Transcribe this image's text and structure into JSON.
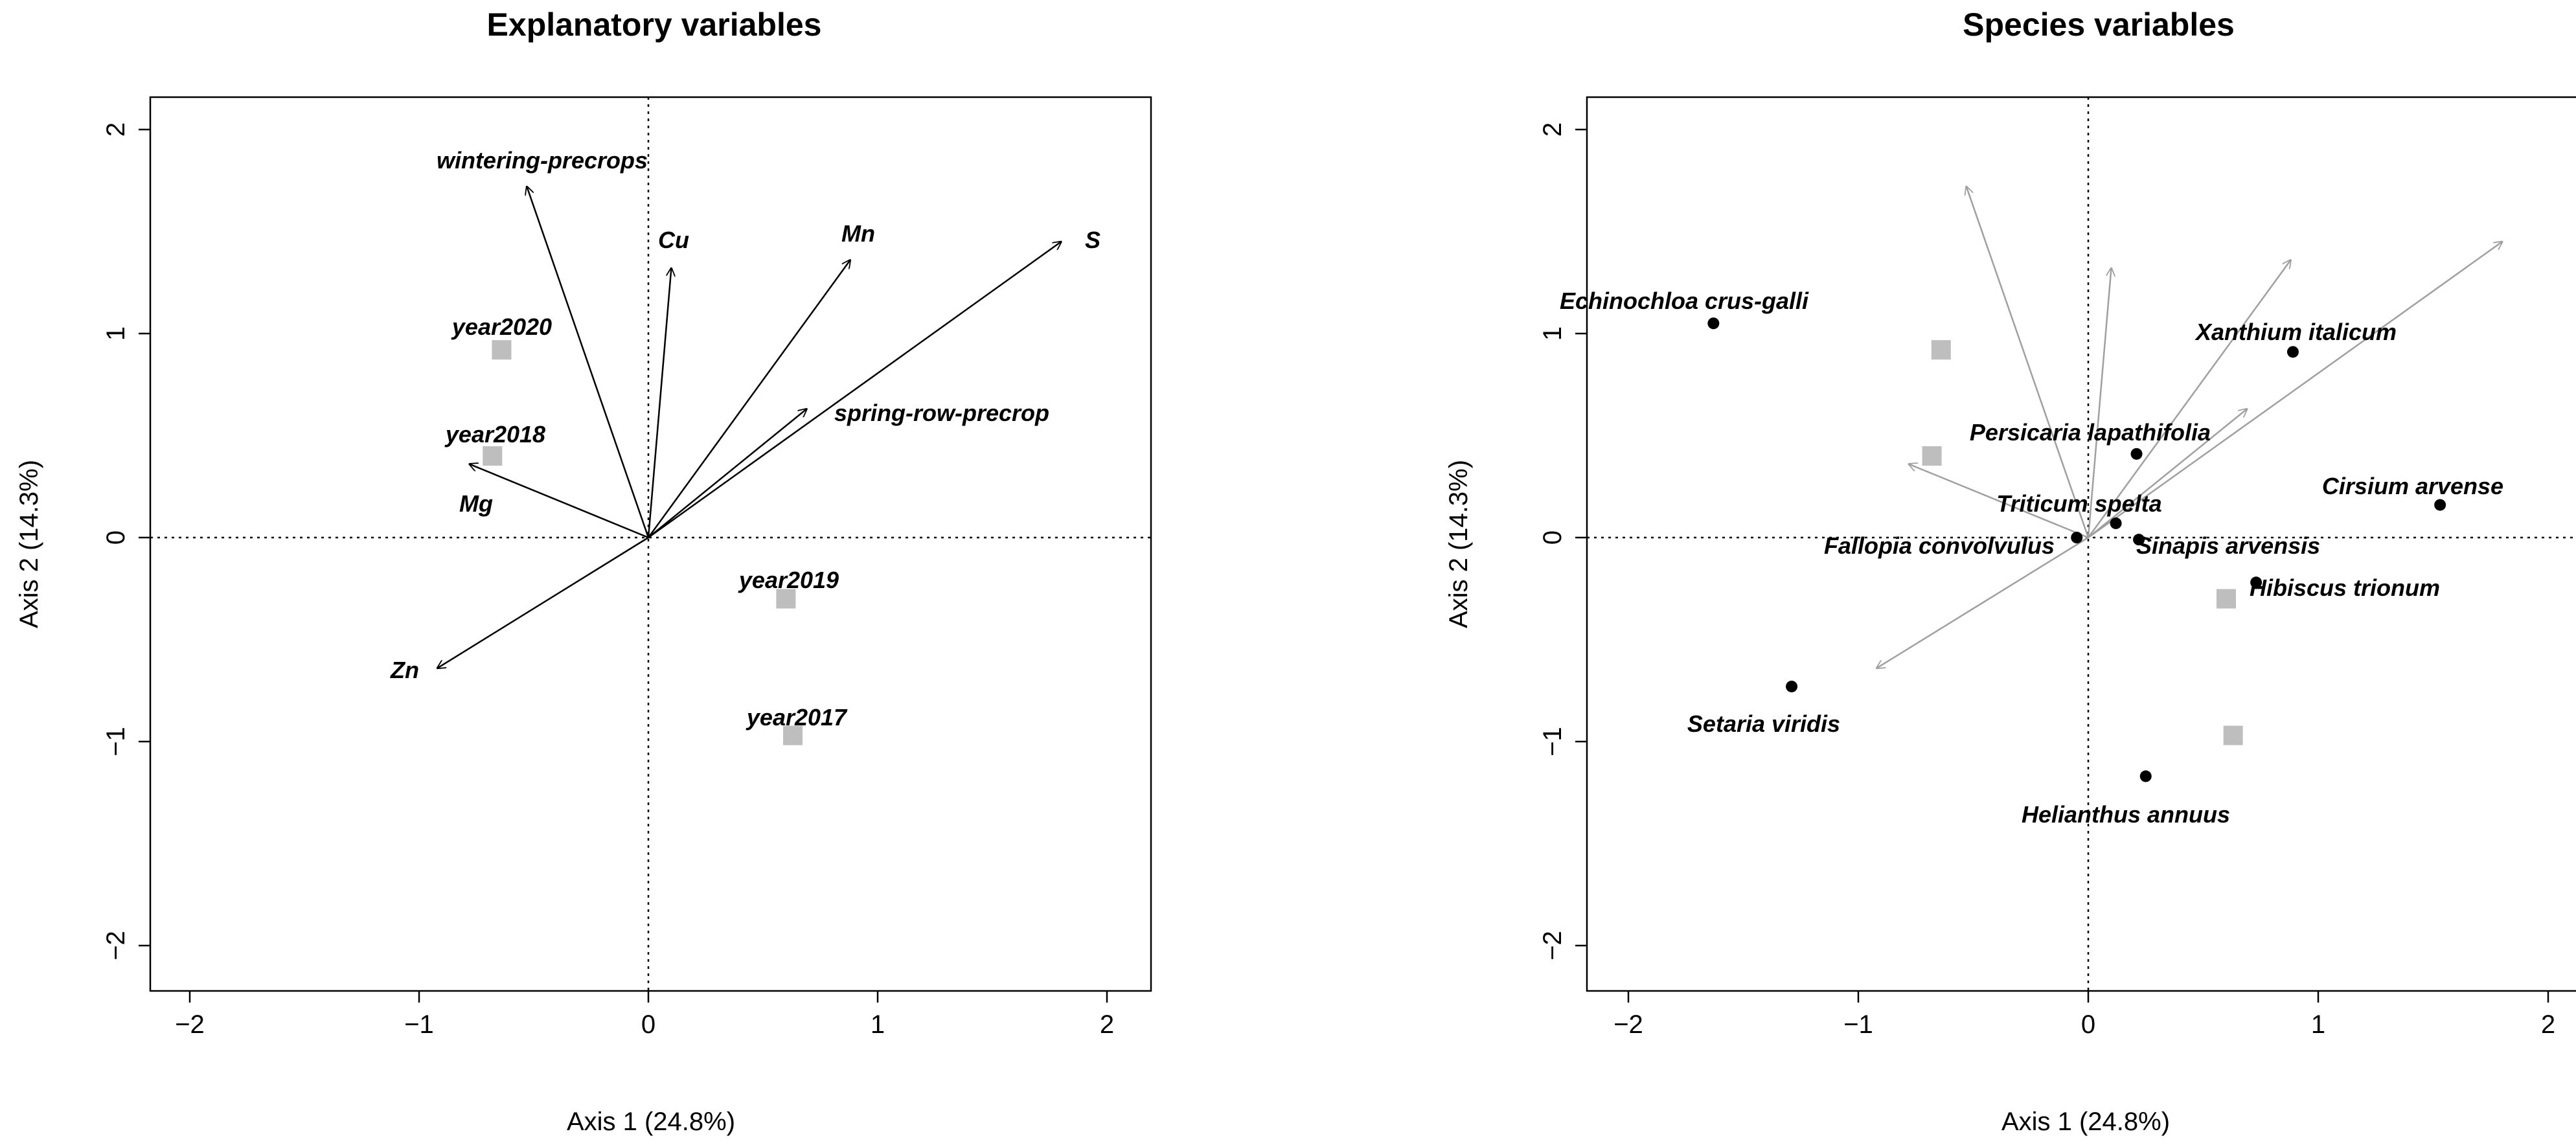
{
  "chart_data": [
    {
      "type": "scatter",
      "title": "Explanatory variables",
      "xlabel": "Axis 1 (24.8%)",
      "ylabel": "Axis 2 (14.3%)",
      "xlim": [
        -2.2,
        2.2
      ],
      "ylim": [
        -2.15,
        2.15
      ],
      "xticks": [
        "-2",
        "-1",
        "0",
        "1",
        "2"
      ],
      "yticks": [
        "-2",
        "-1",
        "0",
        "1",
        "2"
      ],
      "zero_lines": true,
      "grid": false,
      "arrow_color": "#000000",
      "marker_color": "#BEBEBE",
      "arrows": [
        {
          "label": "wintering-precrops",
          "x": -0.53,
          "y": 1.72
        },
        {
          "label": "Cu",
          "x": 0.1,
          "y": 1.32
        },
        {
          "label": "Mn",
          "x": 0.88,
          "y": 1.36
        },
        {
          "label": "S",
          "x": 1.8,
          "y": 1.45
        },
        {
          "label": "spring-row-precrop",
          "x": 0.69,
          "y": 0.63
        },
        {
          "label": "Mg",
          "x": -0.78,
          "y": 0.36
        },
        {
          "label": "Zn",
          "x": -0.92,
          "y": -0.64
        }
      ],
      "squares": [
        {
          "label": "year2020",
          "x": -0.64,
          "y": 0.92
        },
        {
          "label": "year2018",
          "x": -0.68,
          "y": 0.4
        },
        {
          "label": "year2019",
          "x": 0.6,
          "y": -0.3
        },
        {
          "label": "year2017",
          "x": 0.63,
          "y": -0.97
        }
      ]
    },
    {
      "type": "scatter",
      "title": "Species variables",
      "xlabel": "Axis 1 (24.8%)",
      "ylabel": "Axis 2 (14.3%)",
      "xlim": [
        -2.2,
        2.2
      ],
      "ylim": [
        -2.15,
        2.15
      ],
      "xticks": [
        "-2",
        "-1",
        "0",
        "1",
        "2"
      ],
      "yticks": [
        "-2",
        "-1",
        "0",
        "1",
        "2"
      ],
      "zero_lines": true,
      "grid": false,
      "arrow_color": "#A0A0A0",
      "marker_color": "#BEBEBE",
      "point_color": "#000000",
      "arrows": [
        {
          "x": -0.53,
          "y": 1.72
        },
        {
          "x": 0.1,
          "y": 1.32
        },
        {
          "x": 0.88,
          "y": 1.36
        },
        {
          "x": 1.8,
          "y": 1.45
        },
        {
          "x": 0.69,
          "y": 0.63
        },
        {
          "x": -0.78,
          "y": 0.36
        },
        {
          "x": -0.92,
          "y": -0.64
        }
      ],
      "squares": [
        {
          "x": -0.64,
          "y": 0.92
        },
        {
          "x": -0.68,
          "y": 0.4
        },
        {
          "x": 0.6,
          "y": -0.3
        },
        {
          "x": 0.63,
          "y": -0.97
        }
      ],
      "points": [
        {
          "label": "Echinochloa crus-galli",
          "x": -1.63,
          "y": 1.05
        },
        {
          "label": "Xanthium italicum",
          "x": 0.89,
          "y": 0.91
        },
        {
          "label": "Persicaria lapathifolia",
          "x": 0.21,
          "y": 0.41
        },
        {
          "label": "Cirsium arvense",
          "x": 1.53,
          "y": 0.16
        },
        {
          "label": "Triticum spelta",
          "x": 0.12,
          "y": 0.07
        },
        {
          "label": "Fallopia convolvulus",
          "x": -0.05,
          "y": 0.0
        },
        {
          "label": "Sinapis arvensis",
          "x": 0.22,
          "y": -0.01
        },
        {
          "label": "Hibiscus trionum",
          "x": 0.73,
          "y": -0.22
        },
        {
          "label": "Setaria viridis",
          "x": -1.29,
          "y": -0.73
        },
        {
          "label": "Helianthus annuus",
          "x": 0.25,
          "y": -1.17
        }
      ]
    }
  ]
}
